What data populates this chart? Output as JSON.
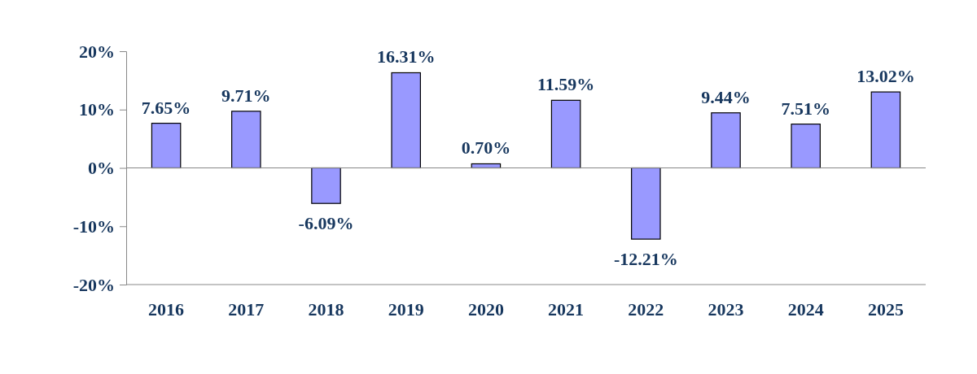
{
  "chart_data": {
    "type": "bar",
    "categories": [
      "2016",
      "2017",
      "2018",
      "2019",
      "2020",
      "2021",
      "2022",
      "2023",
      "2024",
      "2025"
    ],
    "values": [
      7.65,
      9.71,
      -6.09,
      16.31,
      0.7,
      11.59,
      -12.21,
      9.44,
      7.51,
      13.02
    ],
    "value_labels": [
      "7.65%",
      "9.71%",
      "-6.09%",
      "16.31%",
      "0.70%",
      "11.59%",
      "-12.21%",
      "9.44%",
      "7.51%",
      "13.02%"
    ],
    "color": "#9999ff",
    "ylim": [
      -20,
      20
    ],
    "yticks": [
      {
        "value": -20,
        "label": "-20%"
      },
      {
        "value": -10,
        "label": "-10%"
      },
      {
        "value": 0,
        "label": "0%"
      },
      {
        "value": 10,
        "label": "10%"
      },
      {
        "value": 20,
        "label": "20%"
      }
    ],
    "data_labels": false
  }
}
